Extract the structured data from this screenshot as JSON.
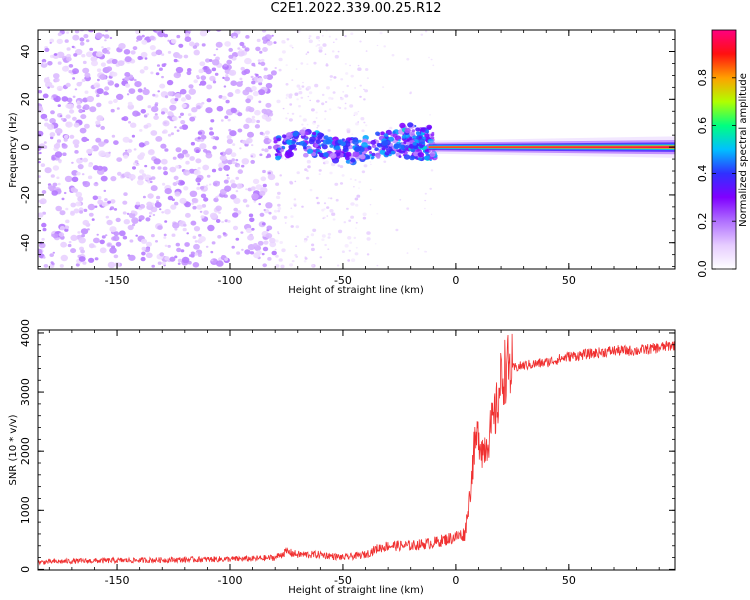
{
  "title": "C2E1.2022.339.00.25.R12",
  "colors": {
    "snr_line": "#f03030",
    "ridge_peak": "#ff1010",
    "colormap": [
      "#ffffff",
      "#e6ccff",
      "#b070ff",
      "#8000ff",
      "#3030ff",
      "#00c0ff",
      "#00ff80",
      "#b0ff00",
      "#ffa000",
      "#ff1010",
      "#ff0080"
    ]
  },
  "chart_data": [
    {
      "type": "heatmap",
      "title": "",
      "xlabel": "Height of straight line (km)",
      "ylabel": "Frequency (Hz)",
      "xlim": [
        -185,
        97
      ],
      "ylim": [
        -51,
        49
      ],
      "xticks": [
        "-150",
        "-100",
        "-50",
        "0",
        "50"
      ],
      "xtick_values": [
        -150,
        -100,
        -50,
        0,
        50
      ],
      "yticks": [
        "-40",
        "-20",
        "0",
        "20",
        "40"
      ],
      "ytick_values": [
        -40,
        -20,
        0,
        20,
        40
      ],
      "colorbar": {
        "label": "Normalized spectral amplitude",
        "range": [
          0,
          1
        ],
        "ticks": [
          "0.0",
          "0.2",
          "0.4",
          "0.6",
          "0.8"
        ],
        "tick_values": [
          0,
          0.2,
          0.4,
          0.6,
          0.8
        ]
      },
      "regions": [
        {
          "x_range": [
            -185,
            -80
          ],
          "freq_range": [
            -50,
            50
          ],
          "amplitude": "0.05-0.2",
          "pattern": "noise"
        },
        {
          "x_range": [
            -80,
            -45
          ],
          "freq_range": [
            -50,
            50
          ],
          "amplitude": "0.02-0.1",
          "pattern": "sparse noise"
        },
        {
          "x_range": [
            -80,
            -25
          ],
          "freq_center": 0,
          "freq_halfwidth": 6,
          "amplitude": "0.3-0.5",
          "pattern": "scattered signal"
        },
        {
          "x_range": [
            -25,
            -10
          ],
          "freq_center": 2,
          "freq_halfwidth": 10,
          "amplitude": "0.3-0.6",
          "pattern": "signal onset"
        },
        {
          "x_range": [
            -10,
            97
          ],
          "freq_center": 0,
          "freq_halfwidth": 2,
          "amplitude": "0.85-1.0",
          "pattern": "coherent line"
        }
      ]
    },
    {
      "type": "line",
      "title": "",
      "xlabel": "Height of straight line (km)",
      "ylabel": "SNR (10 * v/v)",
      "xlim": [
        -185,
        97
      ],
      "ylim": [
        -10,
        4050
      ],
      "xticks": [
        "-150",
        "-100",
        "-50",
        "0",
        "50"
      ],
      "xtick_values": [
        -150,
        -100,
        -50,
        0,
        50
      ],
      "yticks": [
        "0",
        "1000",
        "2000",
        "3000",
        "4000"
      ],
      "ytick_values": [
        0,
        1000,
        2000,
        3000,
        4000
      ],
      "series": [
        {
          "x": [
            -185,
            -170,
            -150,
            -130,
            -110,
            -90,
            -80,
            -75,
            -70,
            -60,
            -50,
            -40,
            -35,
            -30,
            -20,
            -10,
            -5,
            0,
            4,
            6,
            8,
            10,
            12,
            15,
            18,
            20,
            22,
            25,
            30,
            40,
            50,
            60,
            70,
            80,
            90,
            97
          ],
          "y": [
            120,
            140,
            150,
            160,
            170,
            180,
            200,
            300,
            250,
            250,
            200,
            250,
            350,
            400,
            400,
            450,
            500,
            550,
            600,
            1200,
            2000,
            2300,
            2000,
            2300,
            2700,
            3200,
            3400,
            3400,
            3450,
            3500,
            3600,
            3650,
            3700,
            3700,
            3750,
            3800
          ]
        }
      ]
    }
  ]
}
